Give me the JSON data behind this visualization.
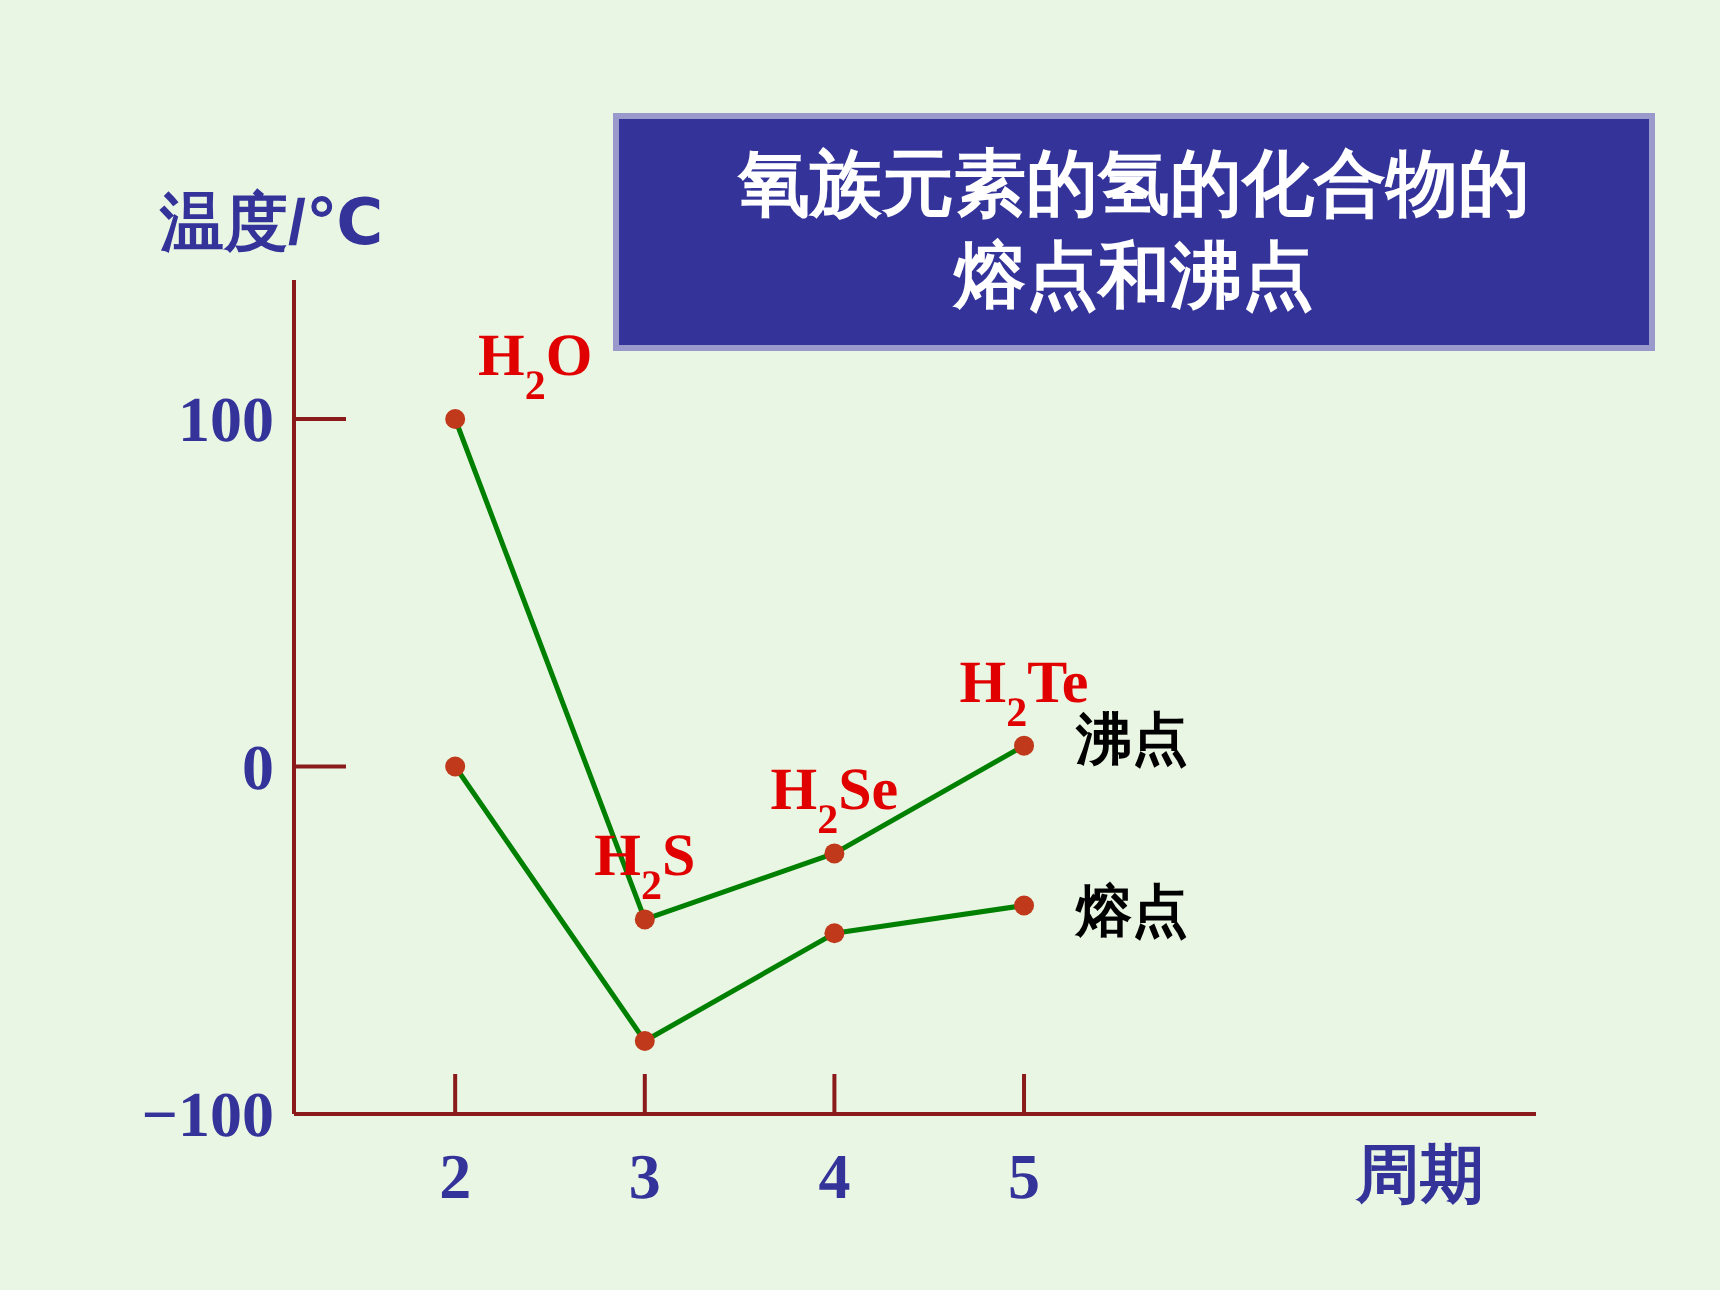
{
  "chart_data": {
    "type": "line",
    "title": "氧族元素的氢的化合物的熔点和沸点",
    "xlabel": "周期",
    "ylabel": "温度/℃",
    "x": [
      2,
      3,
      4,
      5
    ],
    "xlim": [
      1.15,
      7.7
    ],
    "xticks": [
      2,
      3,
      4,
      5
    ],
    "ylim": [
      -100,
      140
    ],
    "yticks": [
      {
        "value": -100,
        "label": "−100"
      },
      0,
      100
    ],
    "series": [
      {
        "name": "沸点",
        "color": "#008000",
        "values": [
          100,
          -44,
          -25,
          6
        ]
      },
      {
        "name": "熔点",
        "color": "#008000",
        "values": [
          0,
          -79,
          -48,
          -40
        ]
      }
    ],
    "marker": "circle",
    "line_style": "solid",
    "grid": false,
    "annotations": [
      {
        "text": "H$_{2}$O",
        "x": 2,
        "y": 100
      },
      {
        "text": "H$_{2}$S",
        "x": 3,
        "y": -44
      },
      {
        "text": "H$_{2}$Se",
        "x": 4,
        "y": -25
      },
      {
        "text": "H$_{2}$Te",
        "x": 5,
        "y": 6
      }
    ]
  }
}
